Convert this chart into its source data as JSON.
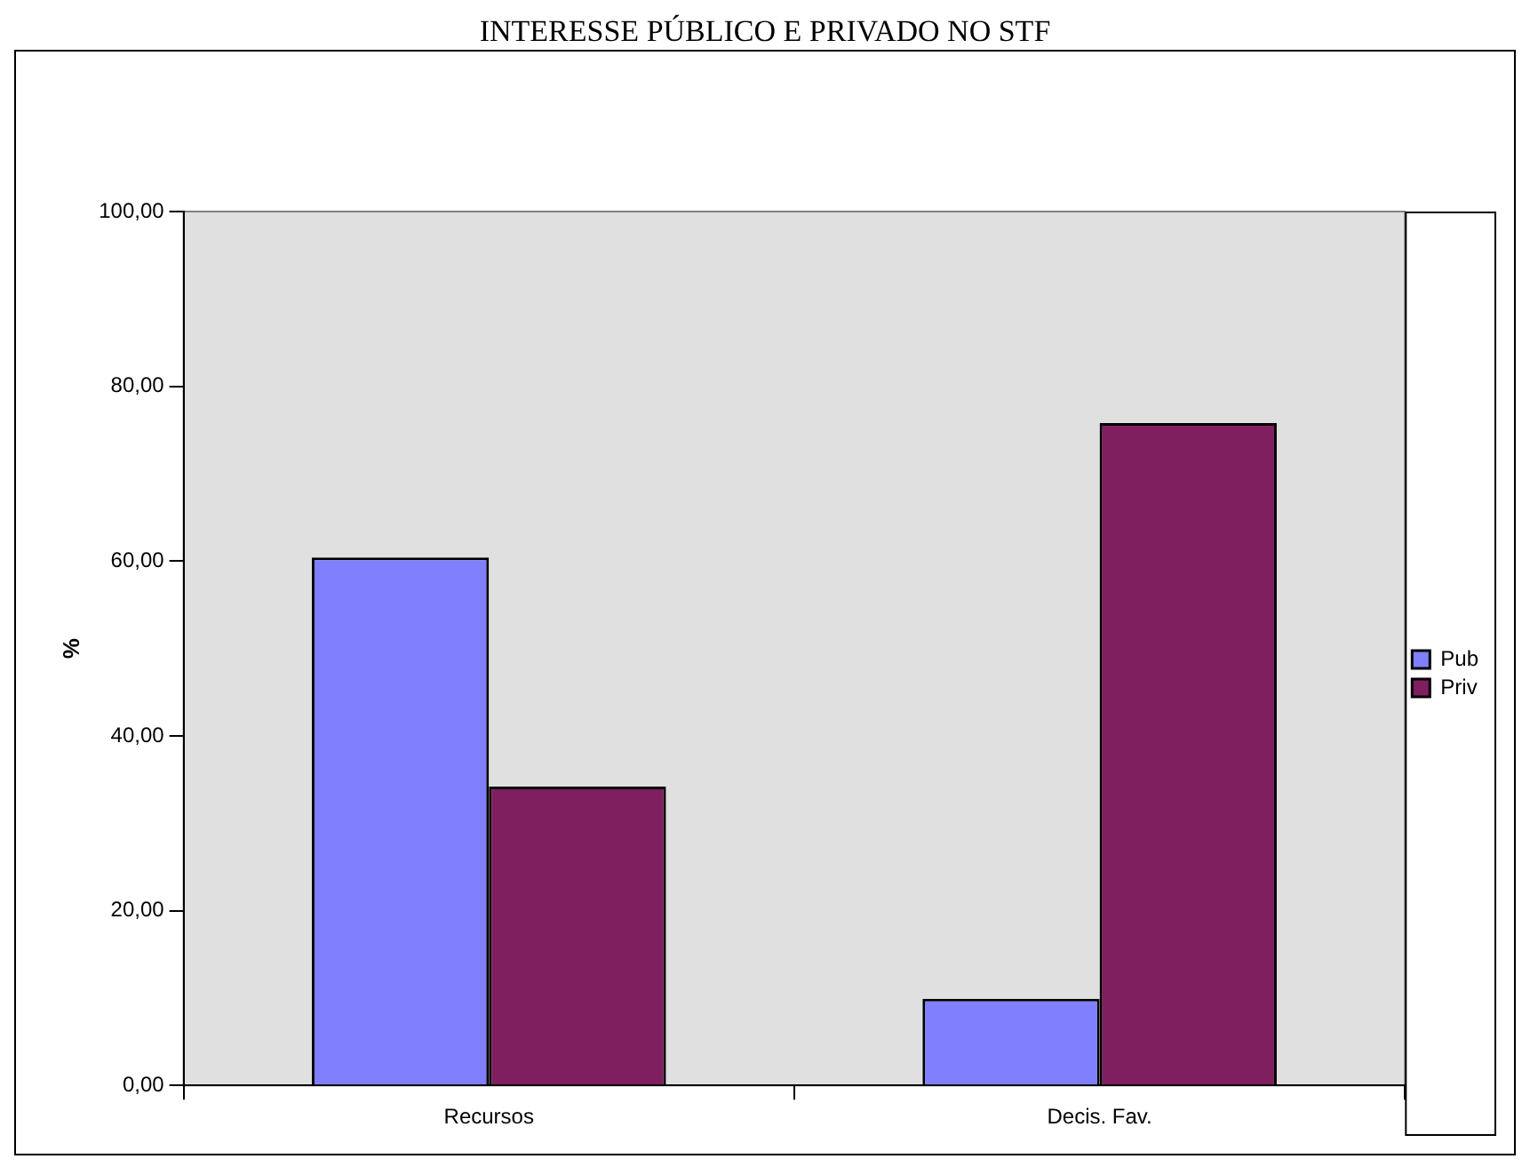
{
  "chart_data": {
    "type": "bar",
    "title": "INTERESSE PÚBLICO E PRIVADO NO STF",
    "ylabel": "%",
    "categories": [
      "Recursos",
      "Decis. Fav."
    ],
    "series": [
      {
        "name": "Pub",
        "color": "#8080ff",
        "values": [
          60.4,
          9.9
        ]
      },
      {
        "name": "Priv",
        "color": "#7f1f5f",
        "values": [
          34.2,
          75.8
        ]
      }
    ],
    "ylim": [
      0,
      100
    ],
    "yticks": [
      {
        "value": 0,
        "label": "0,00"
      },
      {
        "value": 20,
        "label": "20,00"
      },
      {
        "value": 40,
        "label": "40,00"
      },
      {
        "value": 60,
        "label": "60,00"
      },
      {
        "value": 80,
        "label": "80,00"
      },
      {
        "value": 100,
        "label": "100,00"
      }
    ],
    "grid": false,
    "legend": "right"
  }
}
